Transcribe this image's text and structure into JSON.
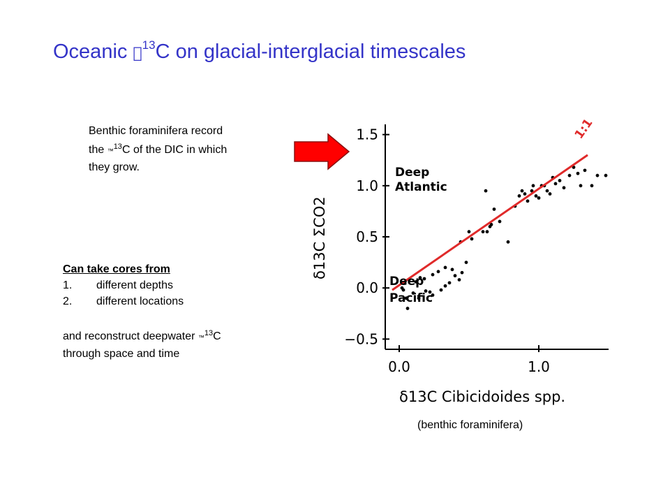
{
  "slide": {
    "title": {
      "prefix": "Oceanic ",
      "symbol": "",
      "sup": "13",
      "suffix": "C  on glacial-interglacial timescales"
    },
    "note1": {
      "line1": "Benthic foraminifera record",
      "line2_a": "the ",
      "line2_symbol": "™",
      "line2_sup": "13",
      "line2_b": "C of the DIC in which",
      "line3": "they grow."
    },
    "cores": {
      "heading": "Can take cores from",
      "items": [
        {
          "n": "1.",
          "text": "different depths"
        },
        {
          "n": "2.",
          "text": "different locations"
        }
      ],
      "line_a": "and reconstruct deepwater ",
      "symbol": "™",
      "sup": "13",
      "line_b": "C",
      "line_c": "through space and time"
    },
    "caption": "(benthic foraminifera)",
    "arrow_color": "#ff0000"
  },
  "chart_data": {
    "type": "scatter",
    "xlabel": "δ13C  Cibicidoides spp.",
    "ylabel": "δ13C  ΣCO2",
    "xlim": [
      -0.1,
      1.5
    ],
    "ylim": [
      -0.6,
      1.6
    ],
    "x_ticks": [
      "0.0",
      "1.0"
    ],
    "y_ticks": [
      "1.5",
      "1.0",
      "0.5",
      "0.0",
      "−0.5"
    ],
    "annotations": [
      {
        "text": "Deep",
        "group": "atlantic"
      },
      {
        "text": "Atlantic",
        "group": "atlantic"
      },
      {
        "text": "Deep",
        "group": "pacific"
      },
      {
        "text": "Pacific",
        "group": "pacific"
      }
    ],
    "line_label": "1:1",
    "line_color": "#e02a2a",
    "line": {
      "x": [
        -0.05,
        1.35
      ],
      "y": [
        -0.02,
        1.3
      ]
    },
    "points": {
      "x": [
        0.03,
        0.05,
        0.06,
        0.1,
        0.14,
        0.19,
        0.22,
        0.24,
        0.3,
        0.33,
        0.36,
        0.4,
        0.44,
        0.02,
        0.04,
        0.07,
        0.12,
        0.15,
        0.18,
        0.24,
        0.28,
        0.33,
        0.38,
        0.43,
        0.45,
        0.48,
        0.5,
        0.52,
        0.6,
        0.62,
        0.63,
        0.65,
        0.66,
        0.68,
        0.72,
        0.78,
        0.83,
        0.86,
        0.88,
        0.9,
        0.92,
        0.95,
        0.96,
        0.98,
        1.0,
        1.02,
        1.04,
        1.06,
        1.08,
        1.1,
        1.12,
        1.15,
        1.18,
        1.22,
        1.25,
        1.28,
        1.3,
        1.33,
        1.38,
        1.42,
        1.48
      ],
      "y": [
        -0.02,
        -0.1,
        -0.2,
        -0.05,
        -0.1,
        -0.03,
        -0.04,
        -0.07,
        -0.02,
        0.02,
        0.05,
        0.12,
        0.45,
        0.0,
        0.05,
        0.08,
        0.06,
        0.1,
        0.09,
        0.13,
        0.16,
        0.2,
        0.18,
        0.08,
        0.15,
        0.25,
        0.55,
        0.48,
        0.55,
        0.95,
        0.55,
        0.6,
        0.62,
        0.77,
        0.65,
        0.45,
        0.8,
        0.9,
        0.95,
        0.92,
        0.85,
        0.95,
        1.0,
        0.9,
        0.88,
        1.0,
        1.0,
        0.95,
        0.92,
        1.08,
        1.02,
        1.05,
        0.98,
        1.1,
        1.18,
        1.12,
        1.0,
        1.15,
        1.0,
        1.1,
        1.1
      ]
    }
  }
}
